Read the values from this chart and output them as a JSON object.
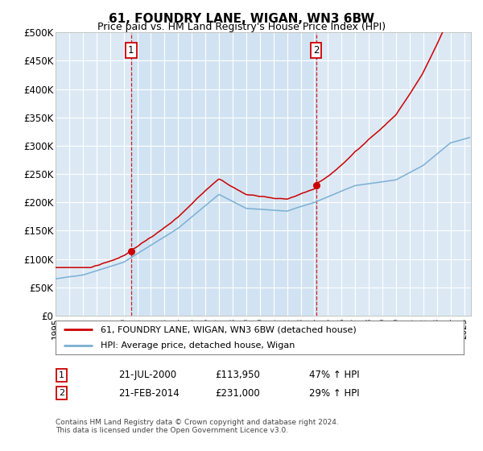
{
  "title": "61, FOUNDRY LANE, WIGAN, WN3 6BW",
  "subtitle": "Price paid vs. HM Land Registry's House Price Index (HPI)",
  "legend_line1": "61, FOUNDRY LANE, WIGAN, WN3 6BW (detached house)",
  "legend_line2": "HPI: Average price, detached house, Wigan",
  "sale1_label": "1",
  "sale1_date": "21-JUL-2000",
  "sale1_price": "£113,950",
  "sale1_hpi": "47% ↑ HPI",
  "sale1_year": 2000.55,
  "sale1_value": 113950,
  "sale2_label": "2",
  "sale2_date": "21-FEB-2014",
  "sale2_price": "£231,000",
  "sale2_hpi": "29% ↑ HPI",
  "sale2_year": 2014.13,
  "sale2_value": 231000,
  "vline1_x": 2000.55,
  "vline2_x": 2014.13,
  "xmin": 1995,
  "xmax": 2025.5,
  "ymin": 0,
  "ymax": 500000,
  "yticks": [
    0,
    50000,
    100000,
    150000,
    200000,
    250000,
    300000,
    350000,
    400000,
    450000,
    500000
  ],
  "ytick_labels": [
    "£0",
    "£50K",
    "£100K",
    "£150K",
    "£200K",
    "£250K",
    "£300K",
    "£350K",
    "£400K",
    "£450K",
    "£500K"
  ],
  "xticks": [
    1995,
    1996,
    1997,
    1998,
    1999,
    2000,
    2001,
    2002,
    2003,
    2004,
    2005,
    2006,
    2007,
    2008,
    2009,
    2010,
    2011,
    2012,
    2013,
    2014,
    2015,
    2016,
    2017,
    2018,
    2019,
    2020,
    2021,
    2022,
    2023,
    2024,
    2025
  ],
  "background_color": "#ffffff",
  "plot_bg_color": "#dce9f5",
  "shade_bg_color": "#dce9f5",
  "grid_color": "#ffffff",
  "red_line_color": "#cc0000",
  "blue_line_color": "#7bafd4",
  "vline_color": "#cc0000",
  "marker_color": "#cc0000",
  "footnote": "Contains HM Land Registry data © Crown copyright and database right 2024.\nThis data is licensed under the Open Government Licence v3.0."
}
